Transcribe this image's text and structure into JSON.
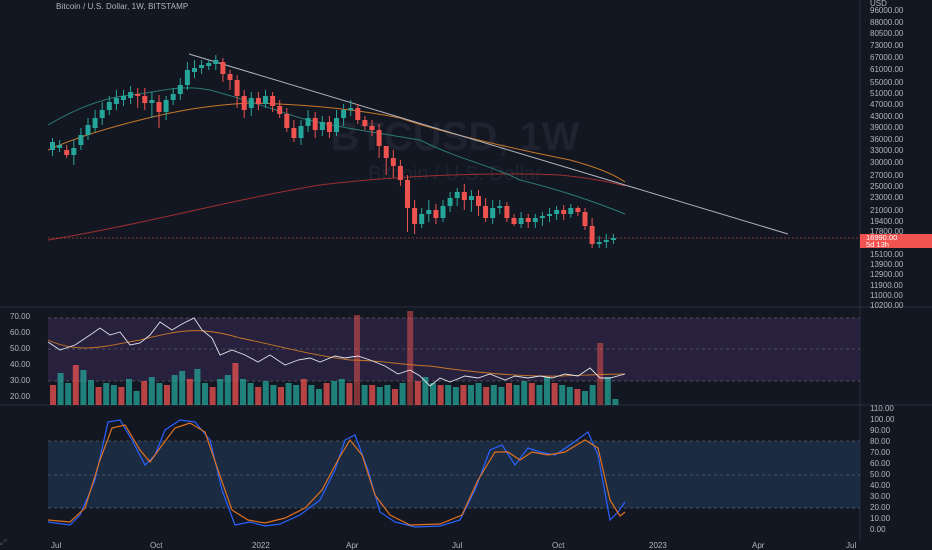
{
  "legend": {
    "text": "Bitcoin / U.S. Dollar, 1W, BITSTAMP"
  },
  "watermark": {
    "symbol": "BTCUSD, 1W",
    "description": "Bitcoin / U.S. Dollar"
  },
  "price_axis": {
    "currency_label": "USD",
    "labels": [
      "96000.00",
      "88000.00",
      "80500.00",
      "73000.00",
      "67000.00",
      "61000.00",
      "55000.00",
      "51000.00",
      "47000.00",
      "43000.00",
      "39000.00",
      "36000.00",
      "33000.00",
      "30000.00",
      "27000.00",
      "25000.00",
      "23000.00",
      "21000.00",
      "19400.00",
      "17800.00",
      "15100.00",
      "13900.00",
      "12900.00",
      "11900.00",
      "11000.00",
      "10200.00"
    ],
    "current_price": "16990.00",
    "current_countdown": "5d 13h"
  },
  "rsi_axis": {
    "labels": [
      "70.00",
      "60.00",
      "50.00",
      "40.00",
      "30.00",
      "20.00"
    ]
  },
  "stoch_axis": {
    "labels": [
      "110.00",
      "100.00",
      "90.00",
      "80.00",
      "70.00",
      "60.00",
      "50.00",
      "40.00",
      "30.00",
      "20.00",
      "10.00",
      "0.00"
    ]
  },
  "time_axis": {
    "labels": [
      "Jul",
      "Oct",
      "2022",
      "Apr",
      "Jul",
      "Oct",
      "2023",
      "Apr",
      "Jul"
    ]
  },
  "colors": {
    "background": "#131722",
    "up": "#26a69a",
    "down": "#ef5350",
    "ma_teal": "#2a7a73",
    "ma_orange": "#c8772a",
    "ma_red": "#9c2f2f",
    "trendline": "#b2b5be",
    "rsi_band": "#2a2240",
    "stoch_band": "#1a2c45",
    "stoch_k": "#2962ff",
    "stoch_d": "#e0711f"
  },
  "toolbar": {
    "zoom_icon": "zoom-icon"
  }
}
